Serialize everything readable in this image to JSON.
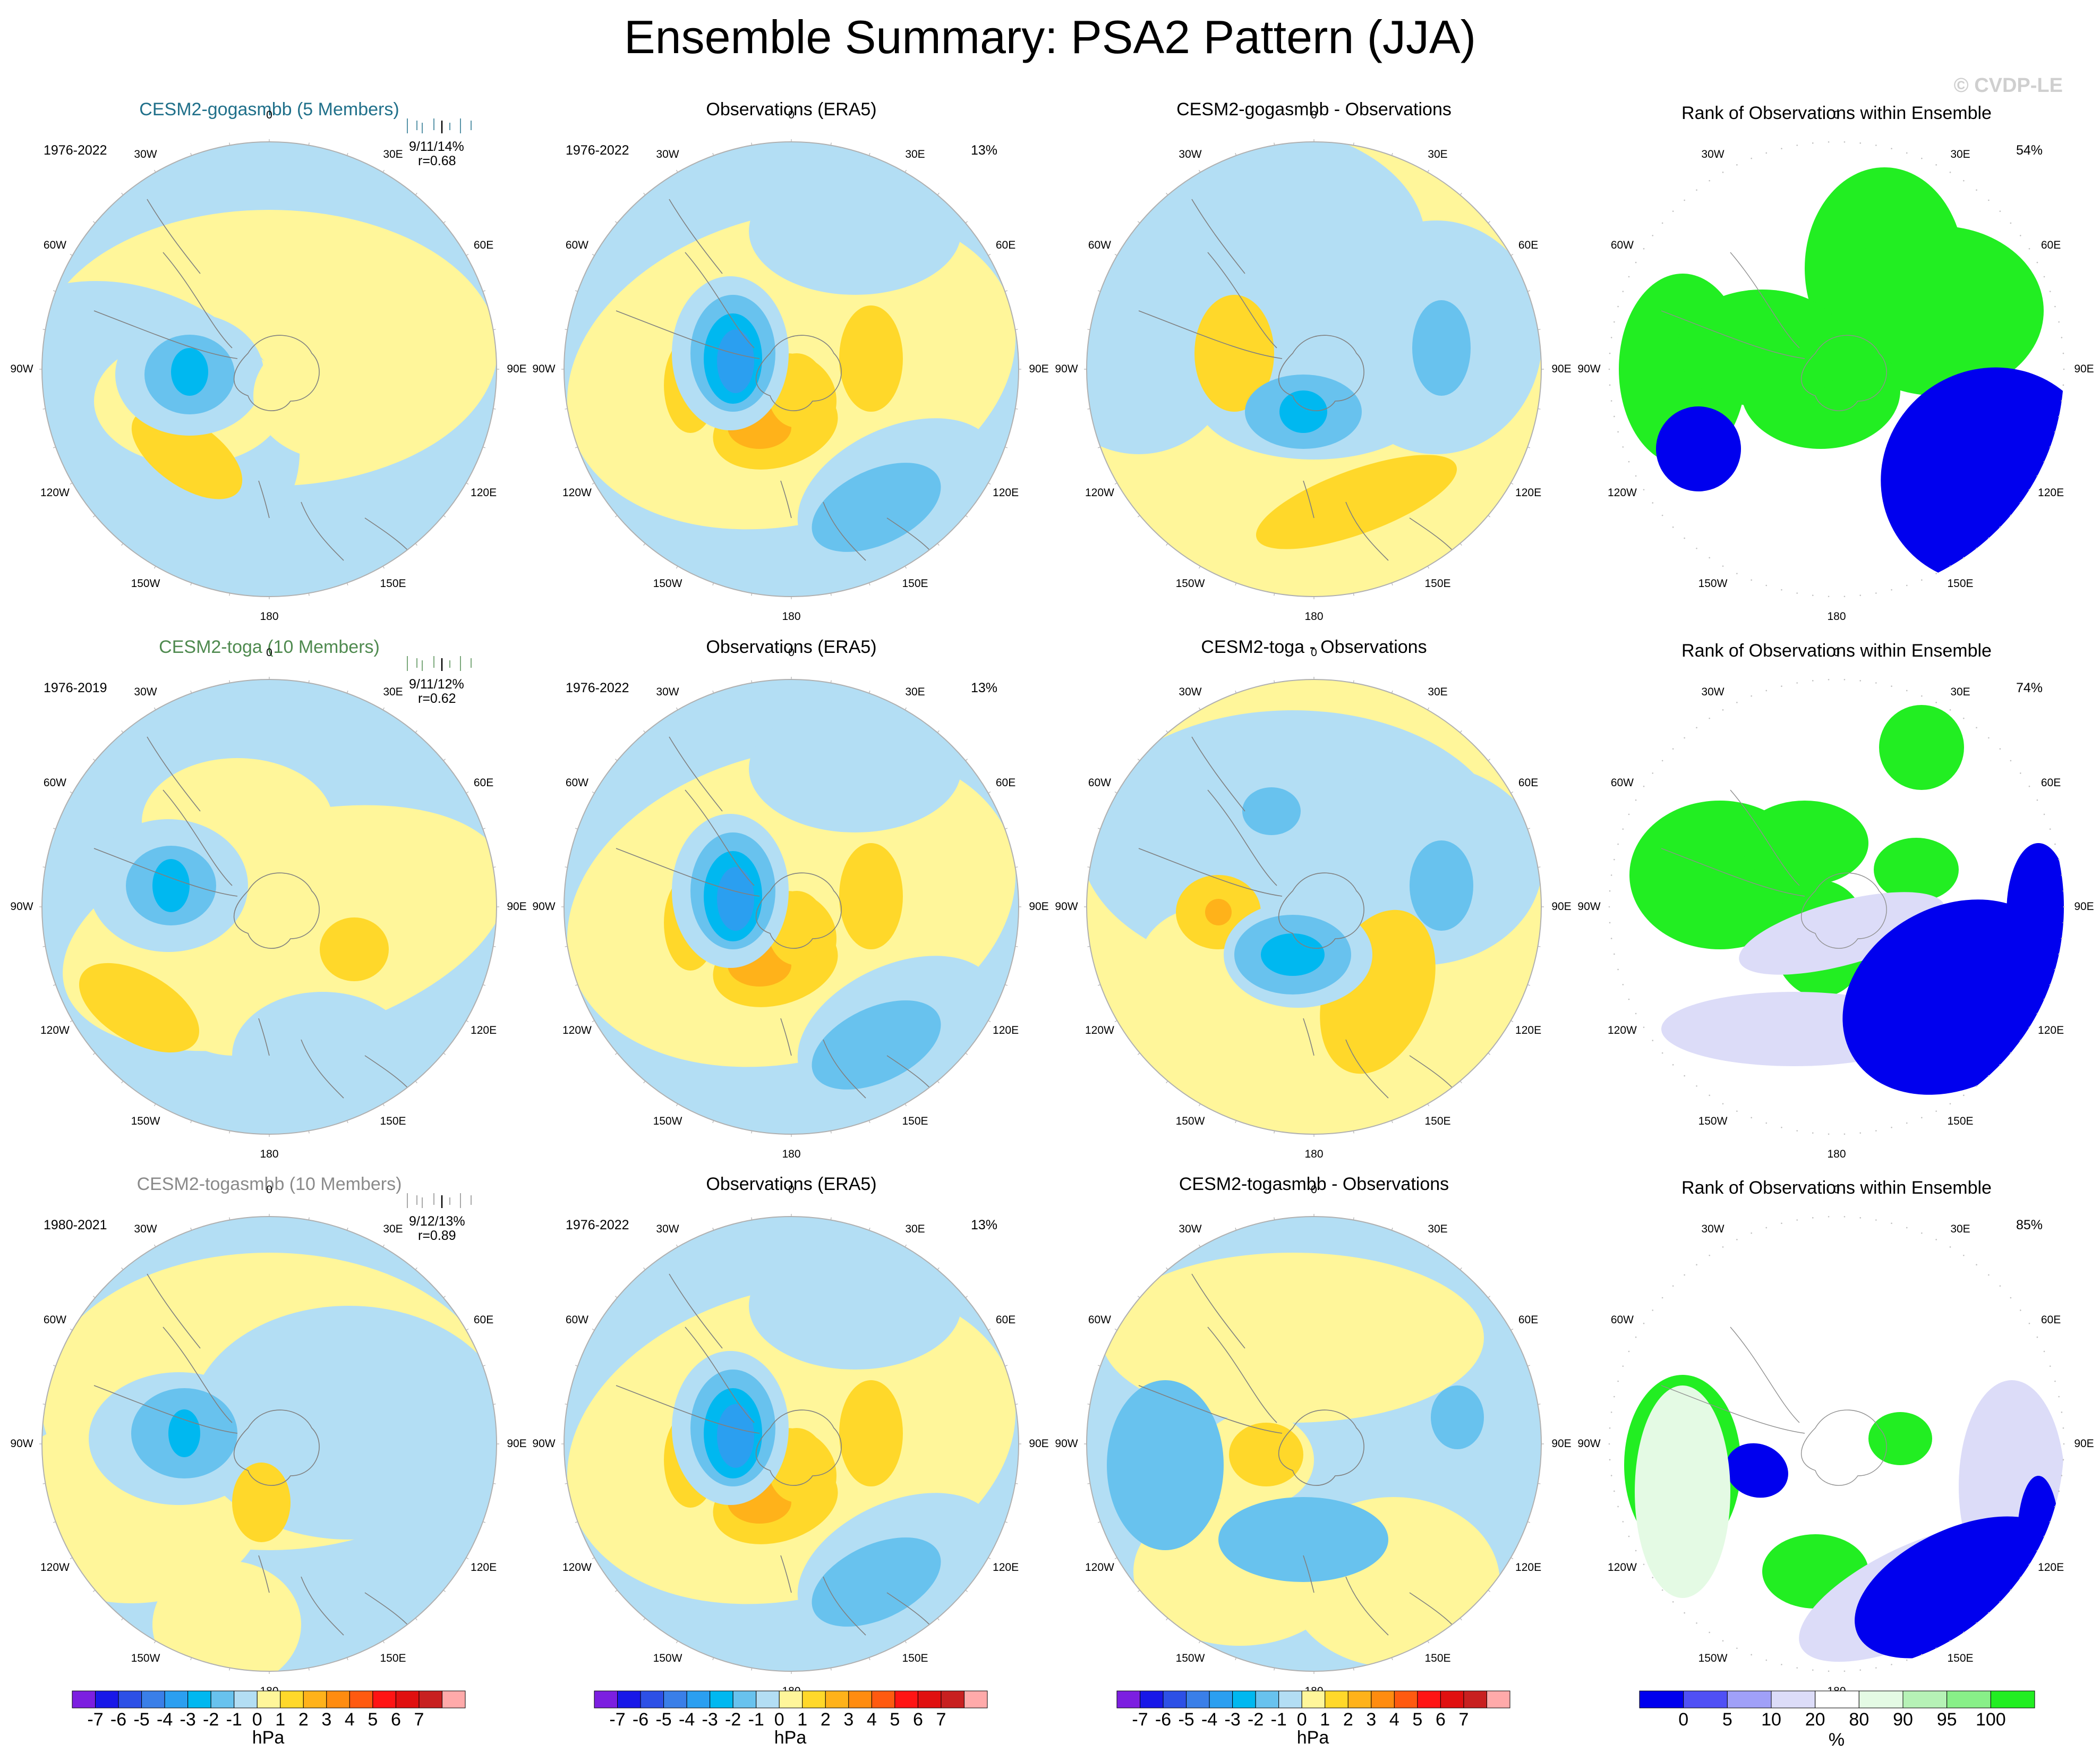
{
  "title": "Ensemble Summary: PSA2 Pattern (JJA)",
  "copyright": "© CVDP-LE",
  "lon_labels": [
    "0",
    "30E",
    "60E",
    "90E",
    "120E",
    "150E",
    "180",
    "150W",
    "120W",
    "90W",
    "60W",
    "30W"
  ],
  "colors": {
    "neg": [
      "#7c1fe0",
      "#1818e8",
      "#2d50e6",
      "#3a7fe8",
      "#2b9ff0",
      "#00b8f0",
      "#68c2ee",
      "#b3def4"
    ],
    "pos": [
      "#fff69a",
      "#ffd82a",
      "#ffb21a",
      "#ff8c10",
      "#ff5a10",
      "#ff1414",
      "#e01010",
      "#c82020",
      "#ffaaaa"
    ],
    "rank": [
      "#0000ee",
      "#5050f5",
      "#a0a0f8",
      "#dcdcf8",
      "#ffffff",
      "#e4fae4",
      "#b6f2b6",
      "#88ef88",
      "#22ee22"
    ],
    "gogasmbb_title": "#20708a",
    "toga_title": "#4f8a4f",
    "togasmbb_title": "#8a8a8a"
  },
  "rows": [
    {
      "ensemble": {
        "title": "CESM2-gogasmbb (5 Members)",
        "period": "1976-2022",
        "stats": "9/11/14%",
        "r": "r=0.68"
      },
      "obs": {
        "title": "Observations (ERA5)",
        "period": "1976-2022",
        "pct": "13%"
      },
      "diff": {
        "title": "CESM2-gogasmbb - Observations"
      },
      "rank": {
        "title": "Rank of Observations within Ensemble",
        "pct": "54%"
      }
    },
    {
      "ensemble": {
        "title": "CESM2-toga (10 Members)",
        "period": "1976-2019",
        "stats": "9/11/12%",
        "r": "r=0.62"
      },
      "obs": {
        "title": "Observations (ERA5)",
        "period": "1976-2022",
        "pct": "13%"
      },
      "diff": {
        "title": "CESM2-toga - Observations"
      },
      "rank": {
        "title": "Rank of Observations within Ensemble",
        "pct": "74%"
      }
    },
    {
      "ensemble": {
        "title": "CESM2-togasmbb (10 Members)",
        "period": "1980-2021",
        "stats": "9/12/13%",
        "r": "r=0.89"
      },
      "obs": {
        "title": "Observations (ERA5)",
        "period": "1976-2022",
        "pct": "13%"
      },
      "diff": {
        "title": "CESM2-togasmbb - Observations"
      },
      "rank": {
        "title": "Rank of Observations within Ensemble",
        "pct": "85%"
      }
    }
  ],
  "colorbars": {
    "hpa_ticks": [
      "-7",
      "-6",
      "-5",
      "-4",
      "-3",
      "-2",
      "-1",
      "0",
      "1",
      "2",
      "3",
      "4",
      "5",
      "6",
      "7"
    ],
    "hpa_unit": "hPa",
    "rank_ticks": [
      "0",
      "5",
      "10",
      "20",
      "80",
      "90",
      "95",
      "100"
    ],
    "rank_unit": "%"
  }
}
